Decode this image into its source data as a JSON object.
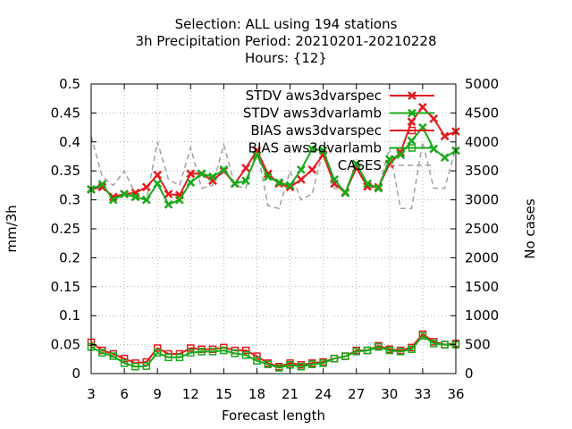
{
  "chart_data": {
    "type": "line",
    "title": [
      "Selection: ALL using   194 stations",
      "3h Precipitation   Period: 20210201-20210228",
      "Hours: {12}"
    ],
    "xlabel": "Forecast length",
    "ylabel": "mm/3h",
    "y2label": "No cases",
    "xlim": [
      3,
      36
    ],
    "ylim": [
      0,
      0.5
    ],
    "y2lim": [
      0,
      5000
    ],
    "xticks": [
      3,
      6,
      9,
      12,
      15,
      18,
      21,
      24,
      27,
      30,
      33,
      36
    ],
    "yticks": [
      0,
      0.05,
      0.1,
      0.15,
      0.2,
      0.25,
      0.3,
      0.35,
      0.4,
      0.45,
      0.5
    ],
    "y2ticks": [
      0,
      500,
      1000,
      1500,
      2000,
      2500,
      3000,
      3500,
      4000,
      4500,
      5000
    ],
    "xticklabels": [
      "3",
      "6",
      "9",
      "12",
      "15",
      "18",
      "21",
      "24",
      "27",
      "30",
      "33",
      "36"
    ],
    "yticklabels": [
      "0",
      "0.05",
      "0.1",
      "0.15",
      "0.2",
      "0.25",
      "0.3",
      "0.35",
      "0.4",
      "0.45",
      "0.5"
    ],
    "y2ticklabels": [
      "0",
      "500",
      "1000",
      "1500",
      "2000",
      "2500",
      "3000",
      "3500",
      "4000",
      "4500",
      "5000"
    ],
    "grid": true,
    "legend_position": "top-right",
    "x": [
      3,
      4,
      5,
      6,
      7,
      8,
      9,
      10,
      11,
      12,
      13,
      14,
      15,
      16,
      17,
      18,
      19,
      20,
      21,
      22,
      23,
      24,
      25,
      26,
      27,
      28,
      29,
      30,
      31,
      32,
      33,
      34,
      35,
      36
    ],
    "series": [
      {
        "name": "STDV aws3dvarspec",
        "axis": "y",
        "color": "#e41a1c",
        "marker": "x",
        "values": [
          0.318,
          0.322,
          0.305,
          0.31,
          0.312,
          0.322,
          0.343,
          0.31,
          0.308,
          0.345,
          0.345,
          0.333,
          0.35,
          0.328,
          0.355,
          0.385,
          0.345,
          0.328,
          0.322,
          0.335,
          0.352,
          0.378,
          0.328,
          0.313,
          0.355,
          0.323,
          0.322,
          0.362,
          0.382,
          0.435,
          0.46,
          0.44,
          0.41,
          0.418
        ]
      },
      {
        "name": "STDV aws3dvarlamb",
        "axis": "y",
        "color": "#1aa91a",
        "marker": "x",
        "values": [
          0.318,
          0.327,
          0.3,
          0.31,
          0.305,
          0.3,
          0.328,
          0.292,
          0.3,
          0.33,
          0.345,
          0.34,
          0.352,
          0.328,
          0.333,
          0.377,
          0.34,
          0.33,
          0.325,
          0.352,
          0.388,
          0.385,
          0.335,
          0.312,
          0.362,
          0.328,
          0.32,
          0.37,
          0.378,
          0.402,
          0.425,
          0.388,
          0.373,
          0.385
        ]
      },
      {
        "name": "BIAS aws3dvarspec",
        "axis": "y",
        "color": "#e41a1c",
        "marker": "square",
        "values": [
          0.054,
          0.04,
          0.034,
          0.026,
          0.018,
          0.02,
          0.044,
          0.034,
          0.034,
          0.044,
          0.042,
          0.042,
          0.045,
          0.04,
          0.04,
          0.03,
          0.018,
          0.012,
          0.018,
          0.015,
          0.018,
          0.02,
          0.026,
          0.03,
          0.04,
          0.04,
          0.048,
          0.042,
          0.04,
          0.045,
          0.068,
          0.055,
          0.05,
          0.052
        ]
      },
      {
        "name": "BIAS aws3dvarlamb",
        "axis": "y",
        "color": "#1aa91a",
        "marker": "square",
        "values": [
          0.046,
          0.036,
          0.03,
          0.018,
          0.012,
          0.013,
          0.036,
          0.028,
          0.028,
          0.036,
          0.038,
          0.038,
          0.04,
          0.035,
          0.032,
          0.022,
          0.016,
          0.01,
          0.015,
          0.012,
          0.016,
          0.018,
          0.026,
          0.03,
          0.038,
          0.04,
          0.046,
          0.04,
          0.038,
          0.042,
          0.065,
          0.052,
          0.05,
          0.05
        ]
      },
      {
        "name": "CASES",
        "axis": "y2",
        "color": "#a0a0a0",
        "marker": "none",
        "dashed": true,
        "values": [
          4100,
          3400,
          3250,
          3500,
          3100,
          3000,
          4000,
          3350,
          3250,
          3900,
          3200,
          3250,
          3950,
          3250,
          3200,
          3900,
          2900,
          2850,
          3500,
          3000,
          3100,
          3850,
          3200,
          3150,
          3600,
          3300,
          3200,
          3900,
          2850,
          2850,
          4000,
          3200,
          3200,
          3900
        ]
      }
    ]
  }
}
